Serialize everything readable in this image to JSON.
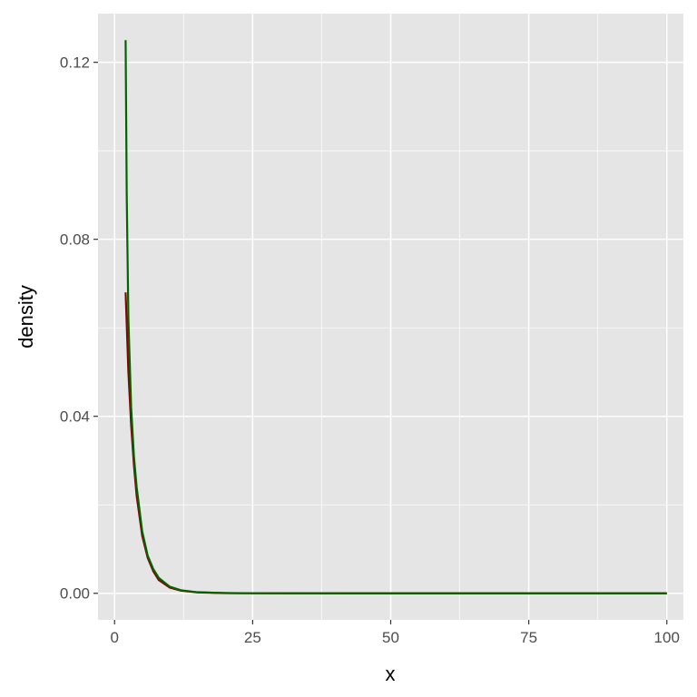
{
  "chart_data": {
    "type": "line",
    "title": "",
    "xlabel": "x",
    "ylabel": "density",
    "xlim": [
      -3,
      103
    ],
    "ylim": [
      -0.006,
      0.131
    ],
    "x_ticks": [
      "0",
      "25",
      "50",
      "75",
      "100"
    ],
    "y_ticks": [
      "0.00",
      "0.04",
      "0.08",
      "0.12"
    ],
    "grid": true,
    "panel_background": "#e5e5e5",
    "series": [
      {
        "color": "#8b0000",
        "x": [
          2,
          2.5,
          3,
          3.5,
          4,
          5,
          6,
          7,
          8,
          10,
          12,
          15,
          20,
          25,
          50,
          100
        ],
        "y": [
          0.068,
          0.05,
          0.038,
          0.029,
          0.022,
          0.013,
          0.008,
          0.005,
          0.003,
          0.0013,
          0.0006,
          0.0002,
          5e-05,
          1e-05,
          0,
          0
        ]
      },
      {
        "color": "#006400",
        "x": [
          2,
          2.2,
          2.5,
          3,
          3.5,
          4,
          5,
          6,
          7,
          8,
          10,
          12,
          15,
          20,
          25,
          50,
          100
        ],
        "y": [
          0.125,
          0.09,
          0.062,
          0.042,
          0.031,
          0.024,
          0.014,
          0.0085,
          0.0055,
          0.0035,
          0.0015,
          0.0007,
          0.00025,
          6e-05,
          1e-05,
          0,
          0
        ]
      }
    ]
  }
}
